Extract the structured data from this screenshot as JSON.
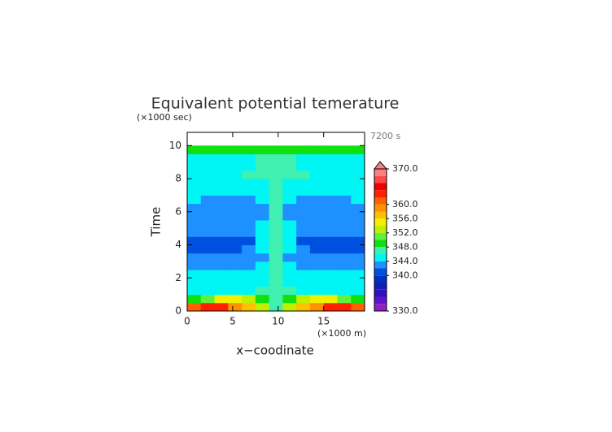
{
  "chart_data": {
    "type": "contour",
    "title": "Equivalent potential temerature",
    "y_unit": "(×1000 sec)",
    "x_unit": "(×1000 m)",
    "time_label": "7200 s",
    "xlabel": "x−coodinate",
    "ylabel": "Time",
    "xlim": [
      0,
      19.5
    ],
    "ylim": [
      0,
      10.8
    ],
    "xticks": [
      0,
      5,
      10,
      15
    ],
    "yticks": [
      0,
      2,
      4,
      6,
      8,
      10
    ],
    "x": [
      0.75,
      2.25,
      3.75,
      5.25,
      6.75,
      8.25,
      9.75,
      11.25,
      12.75,
      14.25,
      15.75,
      17.25,
      18.75
    ],
    "y": [
      0.25,
      0.75,
      1.25,
      1.75,
      2.25,
      2.75,
      3.25,
      3.75,
      4.25,
      4.75,
      5.25,
      5.75,
      6.25,
      6.75,
      7.25,
      7.75,
      8.25,
      8.75,
      9.25,
      9.75
    ],
    "values": [
      [
        361,
        363,
        363,
        359,
        357,
        352,
        347,
        352,
        357,
        359,
        363,
        363,
        361
      ],
      [
        349,
        351,
        355,
        355,
        353,
        349,
        347,
        349,
        353,
        355,
        355,
        351,
        349
      ],
      [
        345,
        345,
        345,
        345,
        345,
        347,
        347,
        347,
        345,
        345,
        345,
        345,
        345
      ],
      [
        345,
        345,
        345,
        345,
        345,
        345,
        346,
        345,
        345,
        345,
        345,
        345,
        345
      ],
      [
        345,
        345,
        345,
        345,
        345,
        345,
        346,
        345,
        345,
        345,
        345,
        345,
        345
      ],
      [
        343,
        343,
        343,
        343,
        343,
        345,
        346,
        345,
        343,
        343,
        343,
        343,
        343
      ],
      [
        343,
        343,
        343,
        343,
        342,
        343,
        346,
        343,
        342,
        343,
        343,
        343,
        343
      ],
      [
        341,
        341,
        341,
        341,
        343,
        345,
        346,
        345,
        343,
        341,
        341,
        341,
        341
      ],
      [
        341,
        341,
        341,
        341,
        341,
        345,
        346,
        345,
        341,
        341,
        341,
        341,
        341
      ],
      [
        343,
        343,
        343,
        343,
        343,
        345,
        346,
        345,
        343,
        343,
        343,
        343,
        343
      ],
      [
        343,
        343,
        343,
        343,
        343,
        345,
        346,
        345,
        343,
        343,
        343,
        343,
        343
      ],
      [
        343,
        343,
        343,
        343,
        343,
        343,
        346,
        343,
        343,
        343,
        343,
        343,
        343
      ],
      [
        343,
        343,
        343,
        343,
        343,
        343,
        346,
        343,
        343,
        343,
        343,
        343,
        343
      ],
      [
        345,
        343,
        343,
        343,
        343,
        345,
        346,
        345,
        343,
        343,
        343,
        343,
        345
      ],
      [
        345,
        345,
        345,
        345,
        345,
        345,
        346,
        345,
        345,
        345,
        345,
        345,
        345
      ],
      [
        345,
        345,
        345,
        345,
        345,
        345,
        346,
        345,
        345,
        345,
        345,
        345,
        345
      ],
      [
        345,
        345,
        345,
        345,
        346,
        346,
        346,
        346,
        346,
        345,
        345,
        345,
        345
      ],
      [
        345,
        345,
        345,
        345,
        345,
        346,
        346,
        346,
        345,
        345,
        345,
        345,
        345
      ],
      [
        345,
        345,
        345,
        345,
        345,
        346,
        346,
        346,
        345,
        345,
        345,
        345,
        345
      ],
      [
        349,
        349,
        349,
        349,
        349,
        349,
        349,
        349,
        349,
        349,
        349,
        349,
        349
      ]
    ],
    "colorbar": {
      "levels": [
        330,
        332,
        334,
        336,
        338,
        340,
        342,
        344,
        346,
        348,
        350,
        352,
        354,
        356,
        358,
        360,
        362,
        364,
        366,
        368,
        370
      ],
      "colors": [
        "#9020c0",
        "#6010d0",
        "#3010c0",
        "#1020b0",
        "#0030c0",
        "#0050e0",
        "#1e90ff",
        "#00f5f5",
        "#40f0b0",
        "#10e010",
        "#60f040",
        "#c0f000",
        "#f0f000",
        "#ffc000",
        "#ff9000",
        "#ff6000",
        "#ff2000",
        "#f00000",
        "#ff4848",
        "#ff8080"
      ],
      "ticks": [
        {
          "value": 330,
          "label": "330.0"
        },
        {
          "value": 340,
          "label": "340.0"
        },
        {
          "value": 344,
          "label": "344.0"
        },
        {
          "value": 348,
          "label": "348.0"
        },
        {
          "value": 352,
          "label": "352.0"
        },
        {
          "value": 356,
          "label": "356.0"
        },
        {
          "value": 360,
          "label": "360.0"
        },
        {
          "value": 370,
          "label": "370.0"
        }
      ]
    }
  }
}
